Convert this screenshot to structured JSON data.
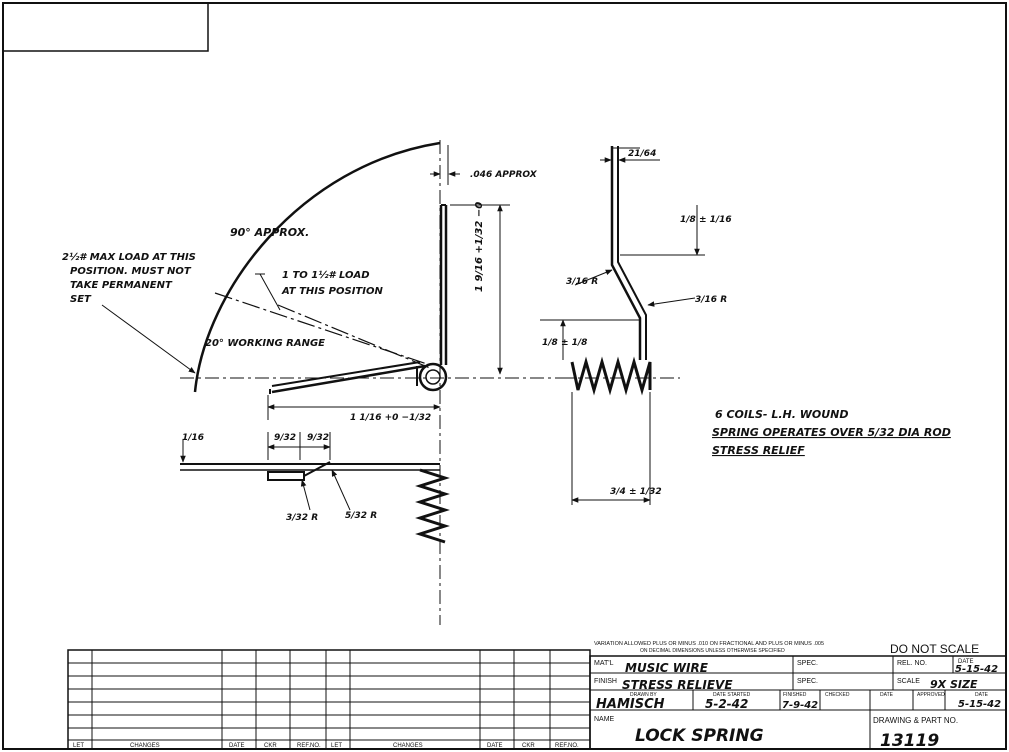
{
  "drawing": {
    "top_view": {
      "load_max": "2½# MAX LOAD AT THIS POSITION. MUST NOT TAKE PERMANENT SET",
      "load_max_lines": [
        "2½# MAX LOAD AT THIS",
        "POSITION. MUST NOT",
        "TAKE PERMANENT",
        "SET"
      ],
      "angle": "90° APPROX.",
      "load_range_lines": [
        "1 TO 1½# LOAD",
        "AT THIS POSITION"
      ],
      "working_range": "20° WORKING RANGE",
      "gap": ".046 APPROX",
      "height_dim": "1 9/16 +1/32 −0",
      "length_dim": "1 1/16 +0 −1/32"
    },
    "side_view": {
      "top_dim": "21/64",
      "dim_1": "1/8 ± 1/16",
      "radius_1": "3/16 R",
      "radius_2": "3/16 R",
      "dim_2": "1/8 ± 1/8",
      "width_dim": "3/4 ± 1/32"
    },
    "front_view": {
      "thickness": "1/16",
      "dim_a": "9/32",
      "dim_b": "9/32",
      "radius_a": "3/32 R",
      "radius_b": "5/32 R"
    },
    "notes": [
      "6 COILS- L.H. WOUND",
      "SPRING OPERATES OVER 5/32 DIA ROD",
      "STRESS RELIEF"
    ]
  },
  "title_block": {
    "tolerance_line1": "VARIATION ALLOWED PLUS OR MINUS .010 ON FRACTIONAL AND PLUS OR MINUS .005",
    "tolerance_line2": "ON DECIMAL DIMENSIONS UNLESS OTHERWISE SPECIFIED",
    "do_not_scale": "DO NOT SCALE",
    "matl_label": "MAT'L",
    "matl": "MUSIC WIRE",
    "spec_label_1": "SPEC.",
    "rel_no_label": "REL. NO.",
    "date_label": "DATE",
    "date_1": "5-15-42",
    "finish_label": "FINISH",
    "finish": "STRESS RELIEVE",
    "spec_label_2": "SPEC.",
    "scale_label": "SCALE",
    "scale": "9X SIZE",
    "drawn_by_label": "DRAWN BY",
    "drawn_by": "HAMISCH",
    "date_started_label": "DATE STARTED",
    "date_started": "5-2-42",
    "finished_label": "FINISHED",
    "finished": "7-9-42",
    "checked_label": "CHECKED",
    "date_label_2": "DATE",
    "approved_label": "APPROVED",
    "date_label_3": "DATE",
    "date_approved": "5-15-42",
    "name_label": "NAME",
    "name": "LOCK SPRING",
    "drawing_no_label": "DRAWING & PART NO.",
    "drawing_no": "13119"
  },
  "revision_table": {
    "headers": [
      "LET",
      "CHANGES",
      "DATE",
      "CKR",
      "REF.NO.",
      "LET",
      "CHANGES",
      "DATE",
      "CKR",
      "REF.NO."
    ]
  }
}
